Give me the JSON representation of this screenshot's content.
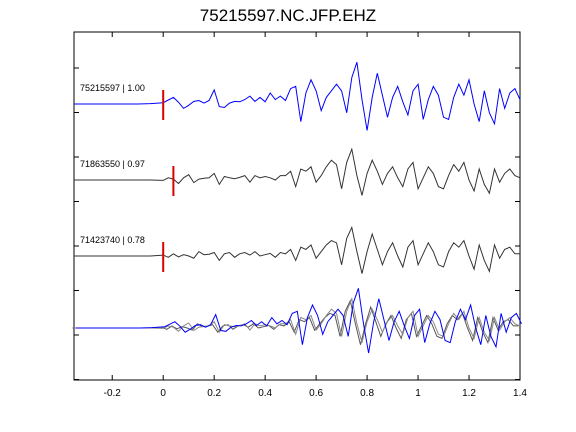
{
  "chart_data": {
    "type": "line",
    "title": "75215597.NC.JFP.EHZ",
    "xlabel": "",
    "ylabel": "",
    "xlim": [
      -0.35,
      1.4
    ],
    "xticks": [
      -0.2,
      0,
      0.2,
      0.4,
      0.6,
      0.8,
      1,
      1.2,
      1.4
    ],
    "xtick_labels": [
      "-0.2",
      "0",
      "0.2",
      "0.4",
      "0.6",
      "0.8",
      "1",
      "1.2",
      "1.4"
    ],
    "grid": false,
    "traces": [
      {
        "label": "75215597 | 1.00",
        "color": "#0000ff",
        "pick_time": 0.0,
        "samples": [
          [
            -0.35,
            0.0
          ],
          [
            -0.1,
            0.0
          ],
          [
            -0.05,
            0.01
          ],
          [
            0.0,
            0.03
          ],
          [
            0.02,
            0.09
          ],
          [
            0.04,
            0.15
          ],
          [
            0.06,
            0.04
          ],
          [
            0.08,
            -0.1
          ],
          [
            0.1,
            -0.03
          ],
          [
            0.12,
            0.06
          ],
          [
            0.14,
            0.08
          ],
          [
            0.16,
            0.02
          ],
          [
            0.18,
            0.08
          ],
          [
            0.2,
            0.32
          ],
          [
            0.22,
            -0.06
          ],
          [
            0.24,
            -0.08
          ],
          [
            0.26,
            0.02
          ],
          [
            0.28,
            0.06
          ],
          [
            0.3,
            0.05
          ],
          [
            0.32,
            0.1
          ],
          [
            0.34,
            0.18
          ],
          [
            0.36,
            0.06
          ],
          [
            0.38,
            0.15
          ],
          [
            0.4,
            0.05
          ],
          [
            0.42,
            0.25
          ],
          [
            0.44,
            0.1
          ],
          [
            0.46,
            0.18
          ],
          [
            0.48,
            0.08
          ],
          [
            0.5,
            0.35
          ],
          [
            0.52,
            0.4
          ],
          [
            0.54,
            -0.4
          ],
          [
            0.56,
            0.25
          ],
          [
            0.58,
            0.55
          ],
          [
            0.6,
            0.3
          ],
          [
            0.62,
            -0.15
          ],
          [
            0.64,
            0.15
          ],
          [
            0.66,
            0.3
          ],
          [
            0.68,
            0.45
          ],
          [
            0.7,
            0.3
          ],
          [
            0.72,
            -0.2
          ],
          [
            0.74,
            0.6
          ],
          [
            0.76,
            0.95
          ],
          [
            0.78,
            0.1
          ],
          [
            0.8,
            -0.6
          ],
          [
            0.82,
            0.15
          ],
          [
            0.84,
            0.7
          ],
          [
            0.86,
            0.2
          ],
          [
            0.88,
            -0.3
          ],
          [
            0.9,
            0.15
          ],
          [
            0.92,
            0.4
          ],
          [
            0.94,
            0.05
          ],
          [
            0.96,
            -0.25
          ],
          [
            0.98,
            0.3
          ],
          [
            1.0,
            0.45
          ],
          [
            1.02,
            -0.35
          ],
          [
            1.04,
            0.1
          ],
          [
            1.06,
            0.4
          ],
          [
            1.08,
            0.2
          ],
          [
            1.1,
            -0.3
          ],
          [
            1.12,
            -0.35
          ],
          [
            1.14,
            0.15
          ],
          [
            1.16,
            0.45
          ],
          [
            1.18,
            0.2
          ],
          [
            1.2,
            0.55
          ],
          [
            1.22,
            0.0
          ],
          [
            1.24,
            -0.4
          ],
          [
            1.26,
            0.3
          ],
          [
            1.28,
            -0.2
          ],
          [
            1.3,
            -0.45
          ],
          [
            1.32,
            0.35
          ],
          [
            1.34,
            -0.1
          ],
          [
            1.36,
            0.25
          ],
          [
            1.38,
            0.35
          ],
          [
            1.4,
            0.1
          ]
        ]
      },
      {
        "label": "71863550 | 0.97",
        "color": "#333333",
        "pick_time": 0.04,
        "samples": [
          [
            -0.35,
            0.0
          ],
          [
            -0.05,
            0.0
          ],
          [
            0.0,
            -0.01
          ],
          [
            0.02,
            0.05
          ],
          [
            0.04,
            0.02
          ],
          [
            0.06,
            -0.08
          ],
          [
            0.08,
            0.05
          ],
          [
            0.1,
            0.12
          ],
          [
            0.12,
            -0.06
          ],
          [
            0.14,
            0.02
          ],
          [
            0.16,
            0.04
          ],
          [
            0.18,
            0.05
          ],
          [
            0.2,
            0.15
          ],
          [
            0.22,
            -0.1
          ],
          [
            0.24,
            0.08
          ],
          [
            0.26,
            0.05
          ],
          [
            0.28,
            0.03
          ],
          [
            0.3,
            0.06
          ],
          [
            0.32,
            0.1
          ],
          [
            0.34,
            -0.05
          ],
          [
            0.36,
            0.1
          ],
          [
            0.38,
            0.05
          ],
          [
            0.4,
            0.08
          ],
          [
            0.42,
            0.05
          ],
          [
            0.44,
            0.0
          ],
          [
            0.46,
            0.1
          ],
          [
            0.48,
            0.1
          ],
          [
            0.5,
            0.2
          ],
          [
            0.52,
            -0.15
          ],
          [
            0.54,
            0.25
          ],
          [
            0.56,
            0.2
          ],
          [
            0.58,
            0.3
          ],
          [
            0.6,
            -0.05
          ],
          [
            0.62,
            0.1
          ],
          [
            0.64,
            0.3
          ],
          [
            0.66,
            0.45
          ],
          [
            0.68,
            0.35
          ],
          [
            0.7,
            -0.2
          ],
          [
            0.72,
            0.4
          ],
          [
            0.74,
            0.7
          ],
          [
            0.76,
            0.1
          ],
          [
            0.78,
            -0.35
          ],
          [
            0.8,
            0.15
          ],
          [
            0.82,
            0.45
          ],
          [
            0.84,
            0.2
          ],
          [
            0.86,
            -0.1
          ],
          [
            0.88,
            0.15
          ],
          [
            0.9,
            0.3
          ],
          [
            0.92,
            0.05
          ],
          [
            0.94,
            -0.15
          ],
          [
            0.96,
            0.25
          ],
          [
            0.98,
            0.4
          ],
          [
            1.0,
            -0.2
          ],
          [
            1.02,
            0.05
          ],
          [
            1.04,
            0.3
          ],
          [
            1.06,
            0.15
          ],
          [
            1.08,
            -0.15
          ],
          [
            1.1,
            -0.2
          ],
          [
            1.12,
            0.1
          ],
          [
            1.14,
            0.35
          ],
          [
            1.16,
            0.2
          ],
          [
            1.18,
            0.4
          ],
          [
            1.2,
            0.0
          ],
          [
            1.22,
            -0.25
          ],
          [
            1.24,
            0.25
          ],
          [
            1.26,
            -0.1
          ],
          [
            1.28,
            -0.3
          ],
          [
            1.3,
            0.25
          ],
          [
            1.32,
            -0.05
          ],
          [
            1.34,
            0.15
          ],
          [
            1.36,
            0.25
          ],
          [
            1.38,
            0.1
          ],
          [
            1.4,
            0.05
          ]
        ]
      },
      {
        "label": "71423740 | 0.78",
        "color": "#333333",
        "pick_time": 0.0,
        "samples": [
          [
            -0.35,
            0.0
          ],
          [
            -0.05,
            0.0
          ],
          [
            0.0,
            0.02
          ],
          [
            0.02,
            -0.03
          ],
          [
            0.04,
            0.05
          ],
          [
            0.06,
            -0.02
          ],
          [
            0.08,
            0.03
          ],
          [
            0.1,
            0.0
          ],
          [
            0.12,
            -0.05
          ],
          [
            0.14,
            0.1
          ],
          [
            0.16,
            0.03
          ],
          [
            0.18,
            0.04
          ],
          [
            0.2,
            0.08
          ],
          [
            0.22,
            -0.1
          ],
          [
            0.24,
            0.05
          ],
          [
            0.26,
            0.08
          ],
          [
            0.28,
            -0.03
          ],
          [
            0.3,
            0.05
          ],
          [
            0.32,
            0.08
          ],
          [
            0.34,
            0.02
          ],
          [
            0.36,
            0.1
          ],
          [
            0.38,
            0.0
          ],
          [
            0.4,
            0.03
          ],
          [
            0.42,
            0.06
          ],
          [
            0.44,
            -0.03
          ],
          [
            0.46,
            0.08
          ],
          [
            0.48,
            0.05
          ],
          [
            0.5,
            0.15
          ],
          [
            0.52,
            -0.1
          ],
          [
            0.54,
            0.2
          ],
          [
            0.56,
            0.15
          ],
          [
            0.58,
            0.25
          ],
          [
            0.6,
            -0.05
          ],
          [
            0.62,
            0.1
          ],
          [
            0.64,
            0.25
          ],
          [
            0.66,
            0.35
          ],
          [
            0.68,
            0.3
          ],
          [
            0.7,
            -0.2
          ],
          [
            0.72,
            0.4
          ],
          [
            0.74,
            0.65
          ],
          [
            0.76,
            0.1
          ],
          [
            0.78,
            -0.4
          ],
          [
            0.8,
            0.1
          ],
          [
            0.82,
            0.5
          ],
          [
            0.84,
            0.15
          ],
          [
            0.86,
            -0.2
          ],
          [
            0.88,
            0.1
          ],
          [
            0.9,
            0.3
          ],
          [
            0.92,
            0.0
          ],
          [
            0.94,
            -0.25
          ],
          [
            0.96,
            0.2
          ],
          [
            0.98,
            0.35
          ],
          [
            1.0,
            -0.2
          ],
          [
            1.02,
            0.05
          ],
          [
            1.04,
            0.3
          ],
          [
            1.06,
            0.1
          ],
          [
            1.08,
            -0.2
          ],
          [
            1.1,
            -0.25
          ],
          [
            1.12,
            0.1
          ],
          [
            1.14,
            0.3
          ],
          [
            1.16,
            0.2
          ],
          [
            1.18,
            0.35
          ],
          [
            1.2,
            0.0
          ],
          [
            1.22,
            -0.3
          ],
          [
            1.24,
            0.25
          ],
          [
            1.26,
            -0.1
          ],
          [
            1.28,
            -0.35
          ],
          [
            1.3,
            0.25
          ],
          [
            1.32,
            -0.05
          ],
          [
            1.34,
            0.15
          ],
          [
            1.36,
            0.2
          ],
          [
            1.38,
            0.05
          ],
          [
            1.4,
            0.05
          ]
        ]
      }
    ],
    "overlay": {
      "colors": [
        "#555555",
        "#888888",
        "#0000ff"
      ]
    },
    "pick_color": "#dd0000"
  }
}
